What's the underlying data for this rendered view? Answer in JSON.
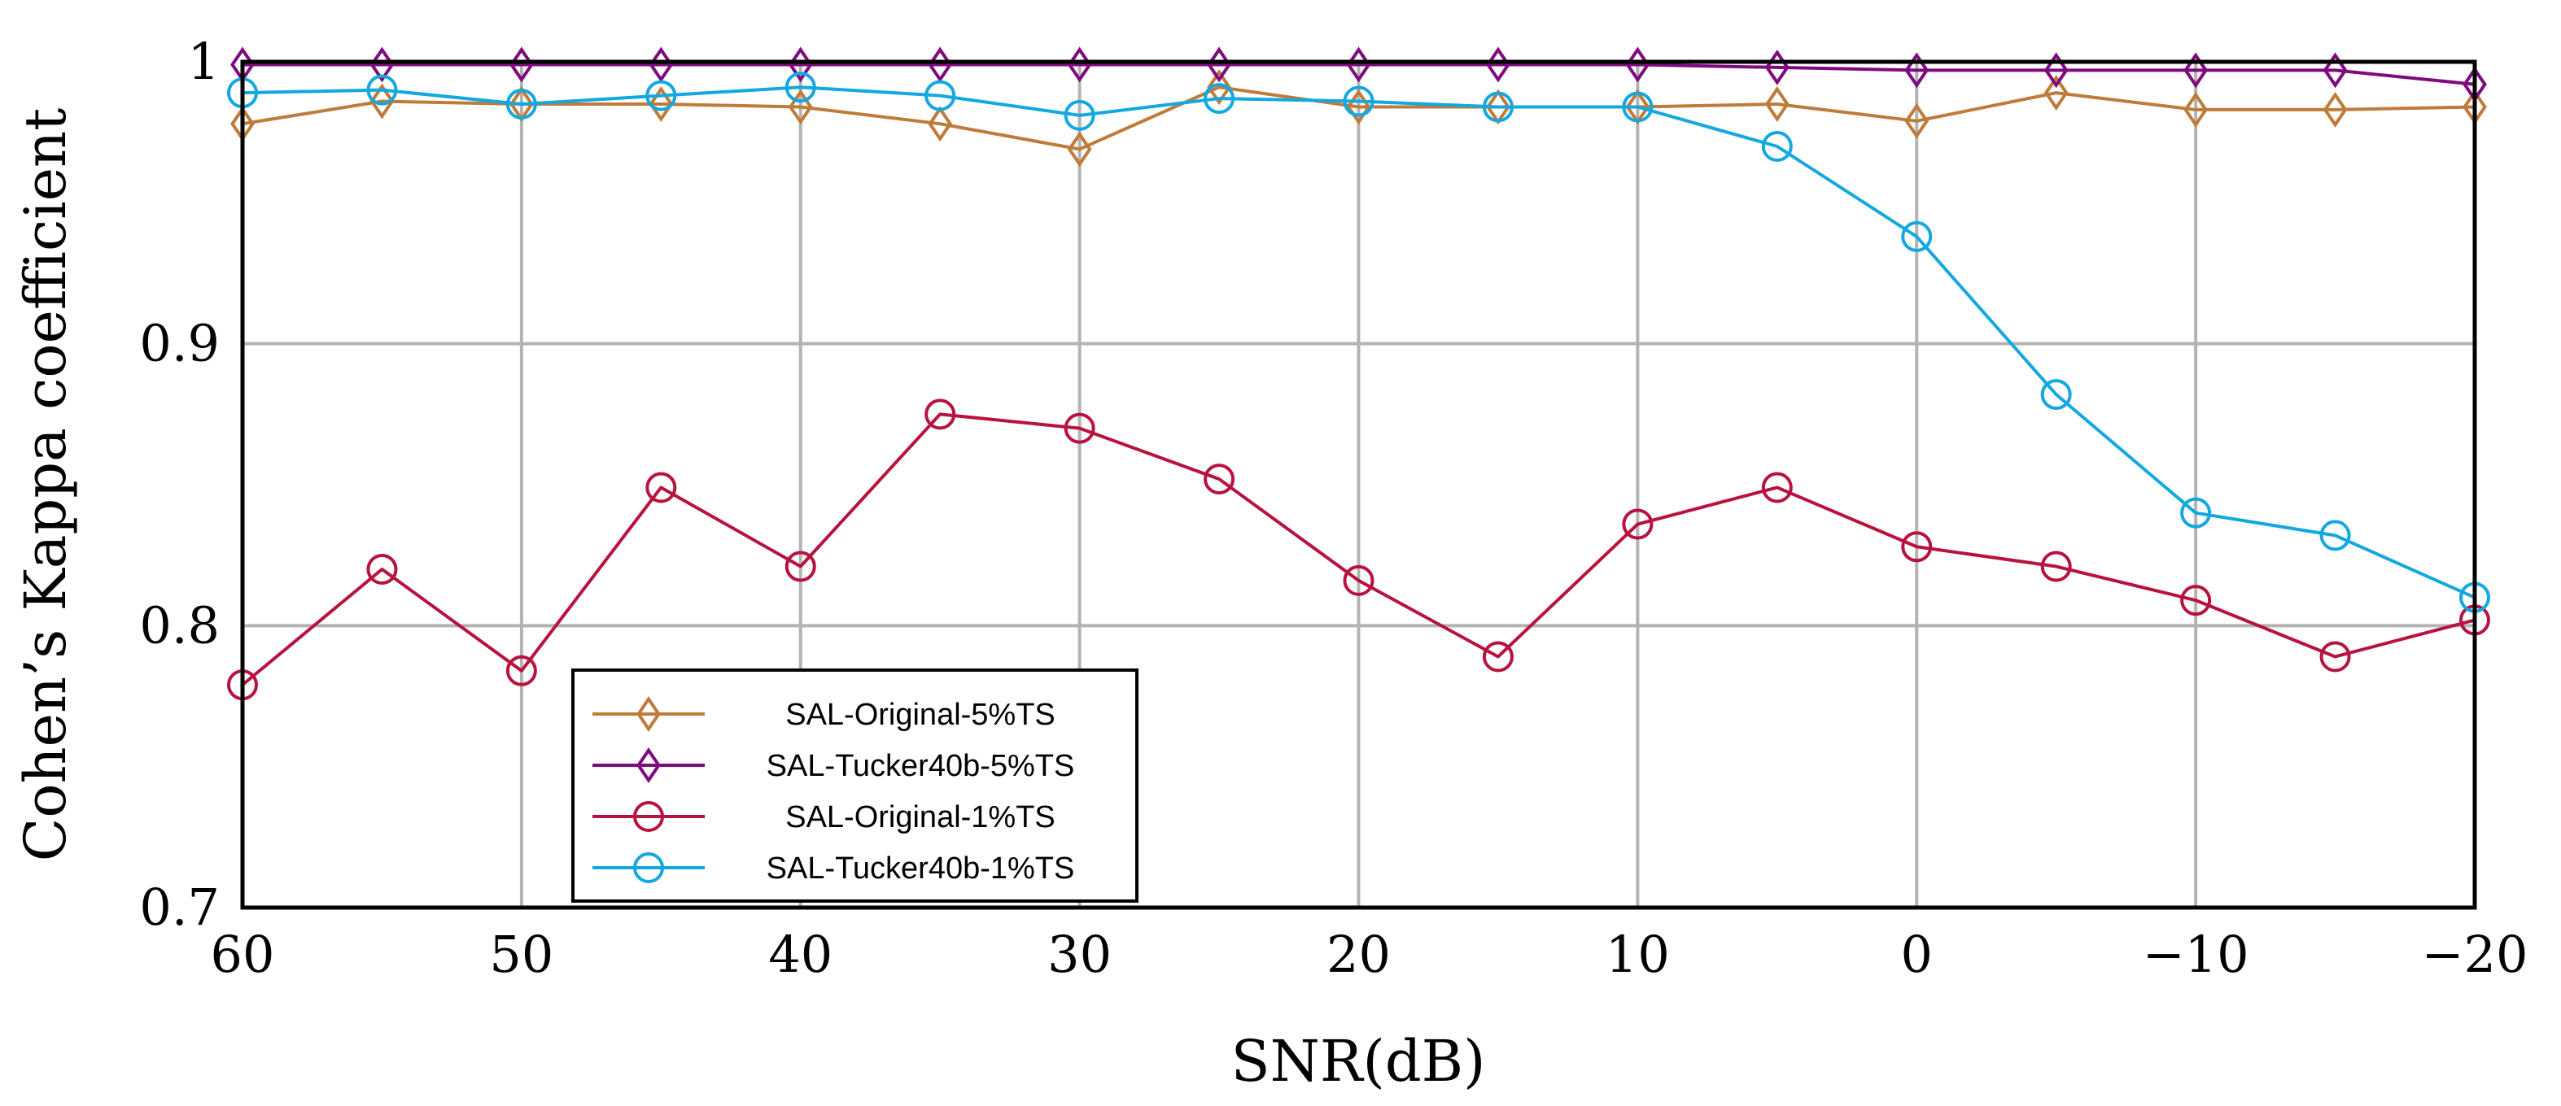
{
  "chart_data": {
    "type": "line",
    "title": "",
    "xlabel": "SNR(dB)",
    "ylabel": "Cohen’s Kappa coefficient",
    "x": [
      60,
      55,
      50,
      45,
      40,
      35,
      30,
      25,
      20,
      15,
      10,
      5,
      0,
      -5,
      -10,
      -15,
      -20
    ],
    "xlim": [
      60,
      -20
    ],
    "ylim": [
      0.7,
      1.0
    ],
    "x_ticks": [
      60,
      50,
      40,
      30,
      20,
      10,
      0,
      -10,
      -20
    ],
    "x_tick_labels": [
      "60",
      "50",
      "40",
      "30",
      "20",
      "10",
      "0",
      "−10",
      "−20"
    ],
    "y_ticks": [
      0.7,
      0.8,
      0.9,
      1.0
    ],
    "y_tick_labels": [
      "0.7",
      "0.8",
      "0.9",
      "1"
    ],
    "grid": true,
    "legend_position": "bottom-left",
    "series": [
      {
        "name": "SAL-Original-5%TS",
        "color": "#bf7b3a",
        "marker": "diamond",
        "values": [
          0.978,
          0.986,
          0.985,
          0.985,
          0.984,
          0.978,
          0.969,
          0.991,
          0.984,
          0.984,
          0.984,
          0.985,
          0.979,
          0.989,
          0.983,
          0.983,
          0.984
        ]
      },
      {
        "name": "SAL-Tucker40b-5%TS",
        "color": "#7f0a7f",
        "marker": "diamond",
        "values": [
          0.999,
          0.999,
          0.999,
          0.999,
          0.999,
          0.999,
          0.999,
          0.999,
          0.999,
          0.999,
          0.999,
          0.998,
          0.997,
          0.997,
          0.997,
          0.997,
          0.992
        ]
      },
      {
        "name": "SAL-Original-1%TS",
        "color": "#b8123e",
        "marker": "circle",
        "values": [
          0.779,
          0.82,
          0.784,
          0.849,
          0.821,
          0.875,
          0.87,
          0.852,
          0.816,
          0.789,
          0.836,
          0.849,
          0.828,
          0.821,
          0.809,
          0.789,
          0.802
        ]
      },
      {
        "name": "SAL-Tucker40b-1%TS",
        "color": "#13a8e0",
        "marker": "circle",
        "values": [
          0.989,
          0.99,
          0.985,
          0.988,
          0.991,
          0.988,
          0.981,
          0.987,
          0.986,
          0.984,
          0.984,
          0.97,
          0.938,
          0.882,
          0.84,
          0.832,
          0.81
        ]
      }
    ]
  }
}
